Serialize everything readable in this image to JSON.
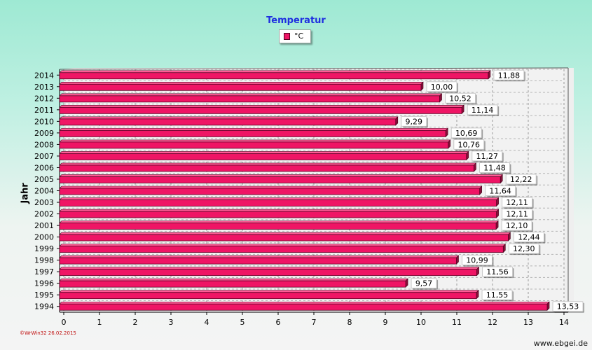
{
  "chart_data": {
    "type": "bar",
    "orientation": "horizontal",
    "title": "Temperatur",
    "ylabel": "Jahr",
    "xlabel": "",
    "categories": [
      "2014",
      "2013",
      "2012",
      "2011",
      "2010",
      "2009",
      "2008",
      "2007",
      "2006",
      "2005",
      "2004",
      "2003",
      "2002",
      "2001",
      "2000",
      "1999",
      "1998",
      "1997",
      "1996",
      "1995",
      "1994"
    ],
    "series": [
      {
        "name": "°C",
        "values": [
          11.88,
          10.0,
          10.52,
          11.14,
          9.29,
          10.69,
          10.76,
          11.27,
          11.48,
          12.22,
          11.64,
          12.11,
          12.11,
          12.1,
          12.44,
          12.3,
          10.99,
          11.56,
          9.57,
          11.55,
          13.53
        ],
        "labels": [
          "11,88",
          "10,00",
          "10,52",
          "11,14",
          "9,29",
          "10,69",
          "10,76",
          "11,27",
          "11,48",
          "12,22",
          "11,64",
          "12,11",
          "12,11",
          "12,10",
          "12,44",
          "12,30",
          "10,99",
          "11,56",
          "9,57",
          "11,55",
          "13,53"
        ]
      }
    ],
    "xlim": [
      0,
      14
    ],
    "xticks": [
      0,
      1,
      2,
      3,
      4,
      5,
      6,
      7,
      8,
      9,
      10,
      11,
      12,
      13,
      14
    ],
    "grid": true,
    "legend_position": "top-center",
    "colors": {
      "bar": "#ef1565",
      "bar_side": "#8a0f3a",
      "bar_top": "#ff5a95",
      "title": "#1f2fe0"
    }
  },
  "footer": {
    "left": "©WrWin32  26.02.2015",
    "right": "www.ebgei.de"
  }
}
